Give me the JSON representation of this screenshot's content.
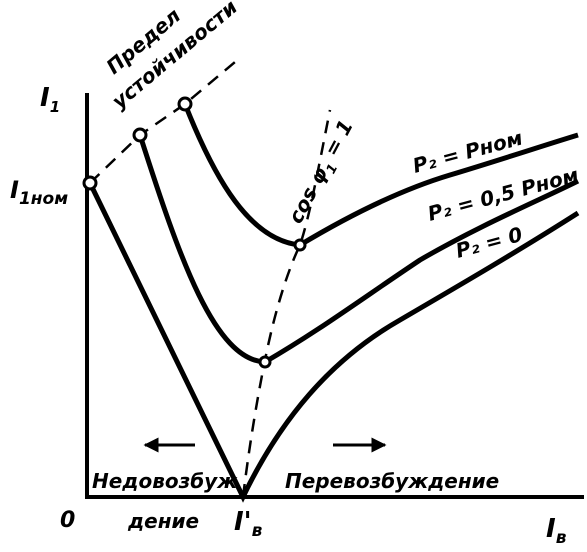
{
  "figure": {
    "labels": {
      "y_axis": "I",
      "y_axis_sub": "1",
      "x_axis": "I",
      "x_axis_sub": "в",
      "origin": "0",
      "i_nom": "I",
      "i_nom_sub": "1ном",
      "i_b_prime": "I'",
      "i_b_prime_sub": "в",
      "stability_line1": "Предел",
      "stability_line2": "устойчивости",
      "cos_phi": "cos φ",
      "cos_phi_sub": "1",
      "cos_phi_value": " = 1",
      "curve_nominal": "P₂ = Pном",
      "curve_half": "P₂ = 0,5 Pном",
      "curve_zero": "P₂ = 0",
      "under_excitation_1": "Недовозбуж",
      "under_excitation_2": "дение",
      "over_excitation": "Перевозбуждение"
    },
    "arrows": {
      "under_excitation": "left",
      "over_excitation": "right"
    }
  }
}
